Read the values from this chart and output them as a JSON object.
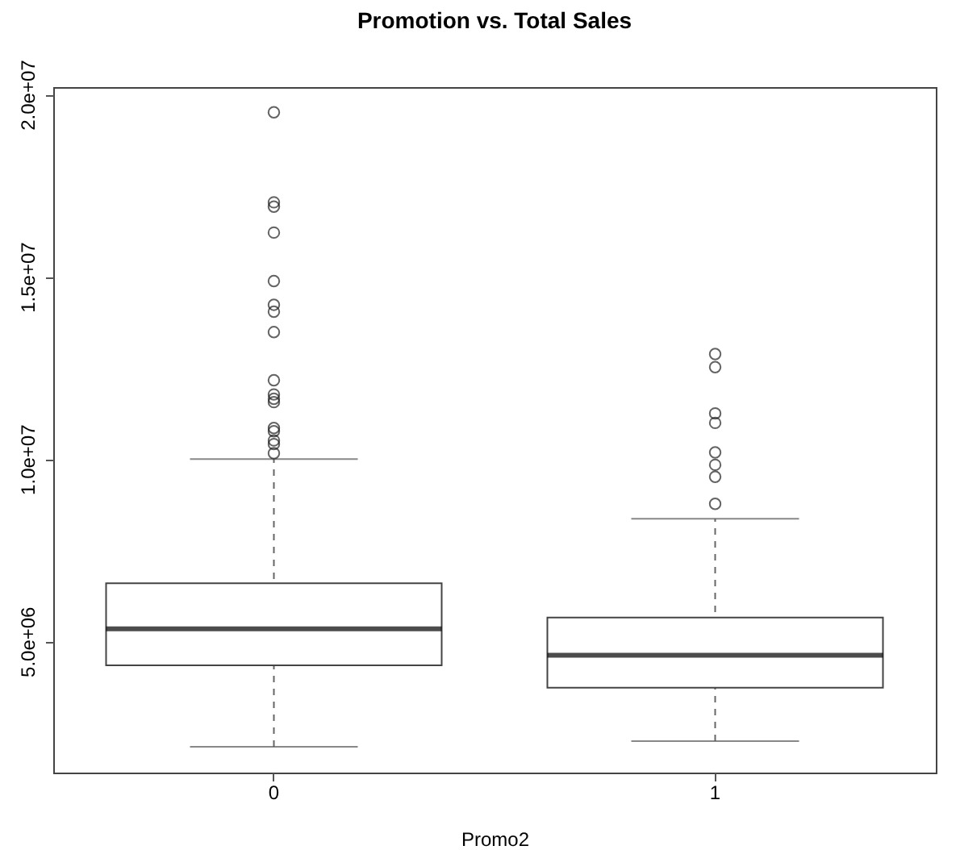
{
  "chart_data": {
    "type": "box",
    "title": "Promotion vs. Total Sales",
    "xlabel": "Promo2",
    "categories": [
      "0",
      "1"
    ],
    "ylim": [
      1400000,
      20200000
    ],
    "yticks": [
      {
        "value": 5000000,
        "label": "5.0e+06"
      },
      {
        "value": 10000000,
        "label": "1.0e+07"
      },
      {
        "value": 15000000,
        "label": "1.5e+07"
      },
      {
        "value": 20000000,
        "label": "2.0e+07"
      }
    ],
    "grid": false,
    "boxes": [
      {
        "low": 2110000,
        "q1": 4340000,
        "median": 5340000,
        "q3": 6590000,
        "high": 10000000,
        "outliers": [
          19510000,
          17040000,
          16920000,
          16210000,
          14880000,
          14230000,
          14040000,
          13480000,
          12160000,
          11770000,
          11650000,
          11560000,
          10850000,
          10760000,
          10510000,
          10410000,
          10160000
        ]
      },
      {
        "low": 2260000,
        "q1": 3730000,
        "median": 4620000,
        "q3": 5650000,
        "high": 8360000,
        "outliers": [
          12880000,
          12520000,
          11250000,
          10990000,
          10180000,
          9840000,
          9510000,
          8770000
        ]
      }
    ]
  }
}
